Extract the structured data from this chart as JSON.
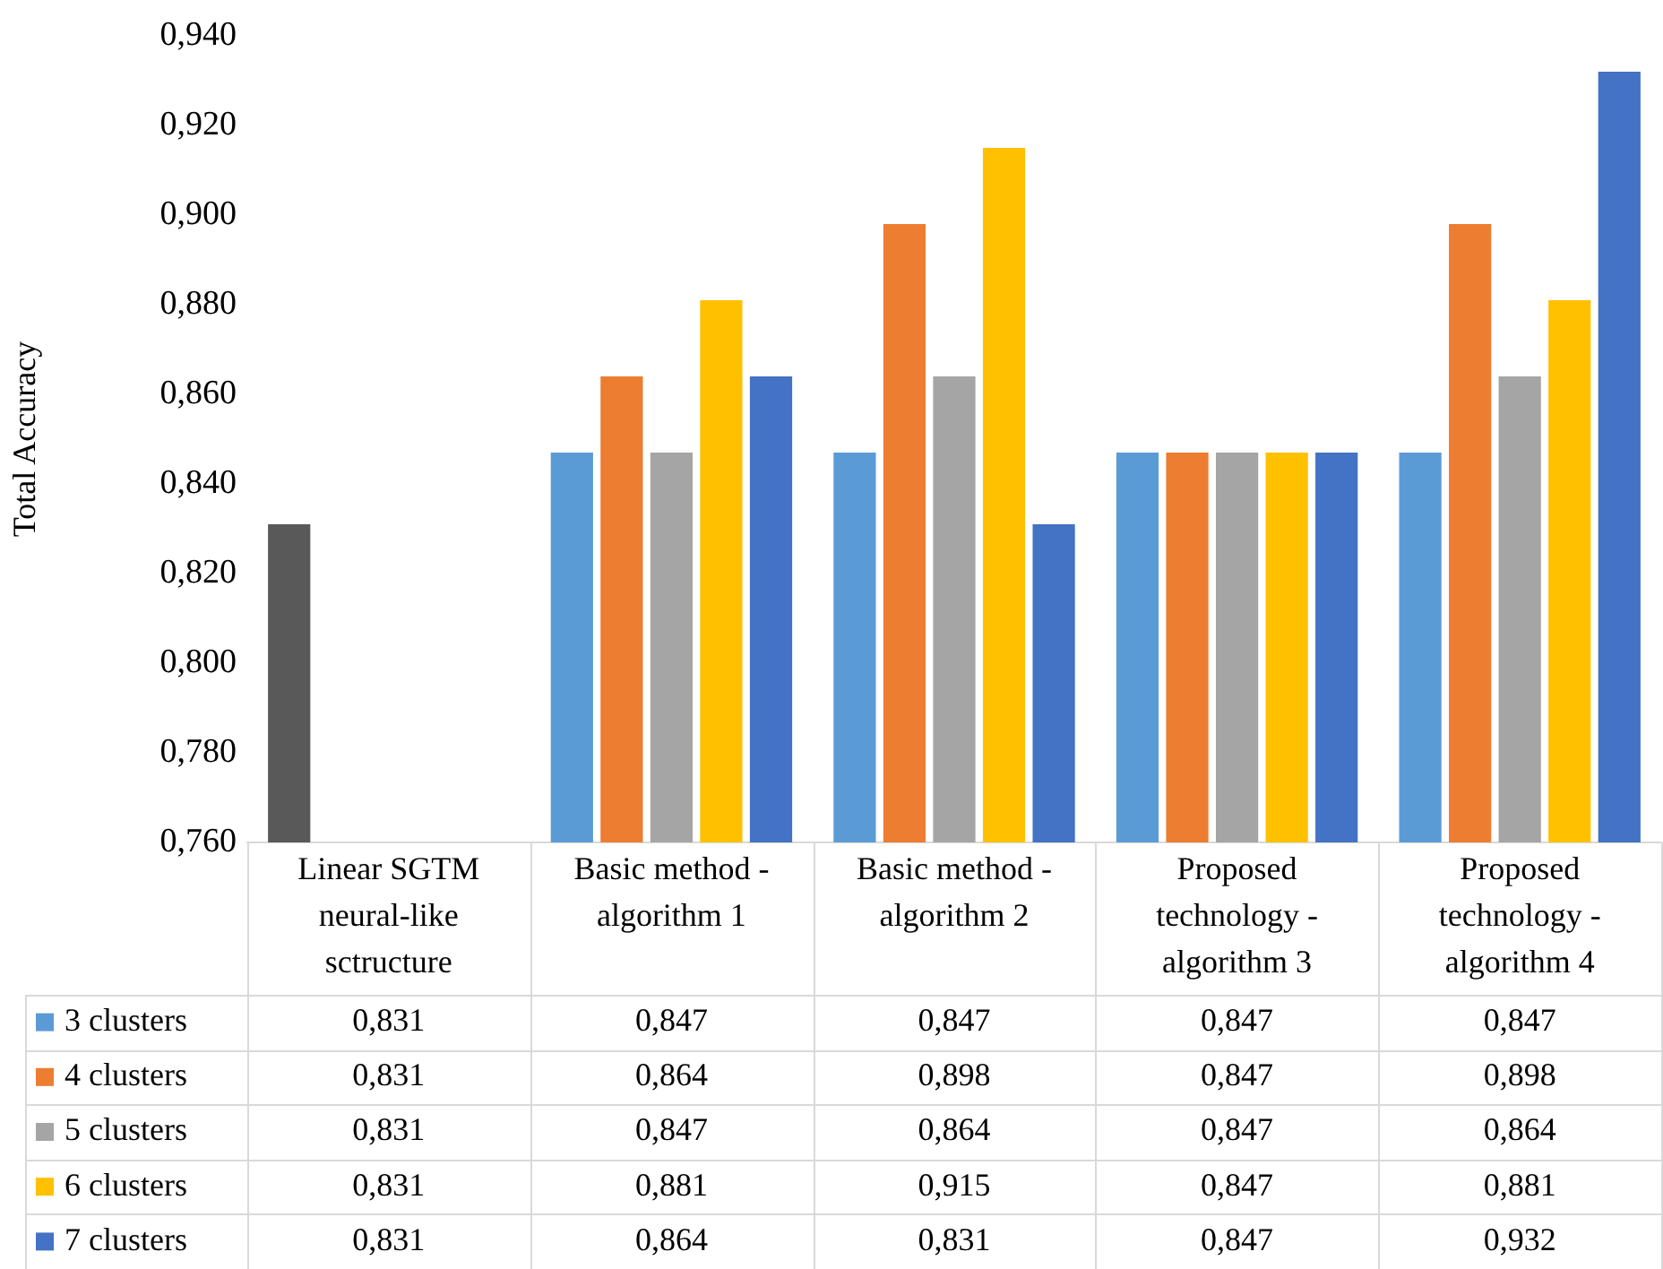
{
  "chart_data": {
    "type": "bar",
    "ylabel": "Total Accuracy",
    "categories": [
      "Linear SGTM neural-like sctructure",
      "Basic method - algorithm 1",
      "Basic method - algorithm 2",
      "Proposed technology - algorithm 3",
      "Proposed technology - algorithm 4"
    ],
    "series": [
      {
        "name": "3 clusters",
        "color": "#5b9bd5",
        "colors": [
          "#595959",
          "#5b9bd5",
          "#5b9bd5",
          "#5b9bd5",
          "#5b9bd5"
        ],
        "values": [
          0.831,
          0.847,
          0.847,
          0.847,
          0.847
        ],
        "value_labels": [
          "0,831",
          "0,847",
          "0,847",
          "0,847",
          "0,847"
        ]
      },
      {
        "name": "4 clusters",
        "color": "#ed7d31",
        "values": [
          null,
          0.864,
          0.898,
          0.847,
          0.898
        ],
        "value_labels": [
          "0,831",
          "0,864",
          "0,898",
          "0,847",
          "0,898"
        ]
      },
      {
        "name": "5 clusters",
        "color": "#a5a5a5",
        "values": [
          null,
          0.847,
          0.864,
          0.847,
          0.864
        ],
        "value_labels": [
          "0,831",
          "0,847",
          "0,864",
          "0,847",
          "0,864"
        ]
      },
      {
        "name": "6 clusters",
        "color": "#ffc000",
        "values": [
          null,
          0.881,
          0.915,
          0.847,
          0.881
        ],
        "value_labels": [
          "0,831",
          "0,881",
          "0,915",
          "0,847",
          "0,881"
        ]
      },
      {
        "name": "7 clusters",
        "color": "#4472c4",
        "values": [
          null,
          0.864,
          0.831,
          0.847,
          0.932
        ],
        "value_labels": [
          "0,831",
          "0,864",
          "0,831",
          "0,847",
          "0,932"
        ]
      }
    ],
    "ylim": [
      0.76,
      0.94
    ],
    "yticks": [
      {
        "value": 0.76,
        "label": "0,760"
      },
      {
        "value": 0.78,
        "label": "0,780"
      },
      {
        "value": 0.8,
        "label": "0,800"
      },
      {
        "value": 0.82,
        "label": "0,820"
      },
      {
        "value": 0.84,
        "label": "0,840"
      },
      {
        "value": 0.86,
        "label": "0,860"
      },
      {
        "value": 0.88,
        "label": "0,880"
      },
      {
        "value": 0.9,
        "label": "0,900"
      },
      {
        "value": 0.92,
        "label": "0,920"
      },
      {
        "value": 0.94,
        "label": "0,940"
      }
    ],
    "grid": false,
    "legend": "bottom"
  }
}
